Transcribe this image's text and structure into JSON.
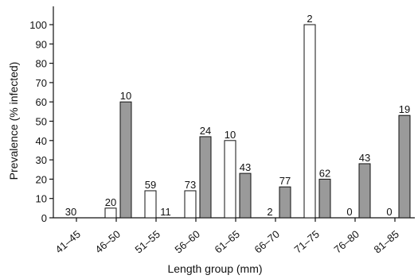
{
  "chart_data": {
    "type": "bar",
    "title": "",
    "xlabel": "Length group (mm)",
    "ylabel": "Prevalence (% infected)",
    "ylim": [
      0,
      100
    ],
    "yticks": [
      0,
      10,
      20,
      30,
      40,
      50,
      60,
      70,
      80,
      90,
      100
    ],
    "grid": false,
    "categories": [
      "41–45",
      "46–50",
      "51–55",
      "56–60",
      "61–65",
      "66–70",
      "71–75",
      "76–80",
      "81–85"
    ],
    "series": [
      {
        "color": "#ffffff",
        "values": [
          0,
          5,
          14,
          14,
          40,
          0,
          100,
          0,
          0
        ],
        "labels": [
          "30",
          "20",
          "59",
          "73",
          "10",
          "2",
          "2",
          "0",
          "0"
        ]
      },
      {
        "color": "#9a9a9a",
        "values": [
          0,
          60,
          0,
          42,
          23,
          16,
          20,
          28,
          53
        ],
        "labels": [
          "",
          "10",
          "11",
          "24",
          "43",
          "77",
          "62",
          "43",
          "19"
        ]
      }
    ]
  }
}
